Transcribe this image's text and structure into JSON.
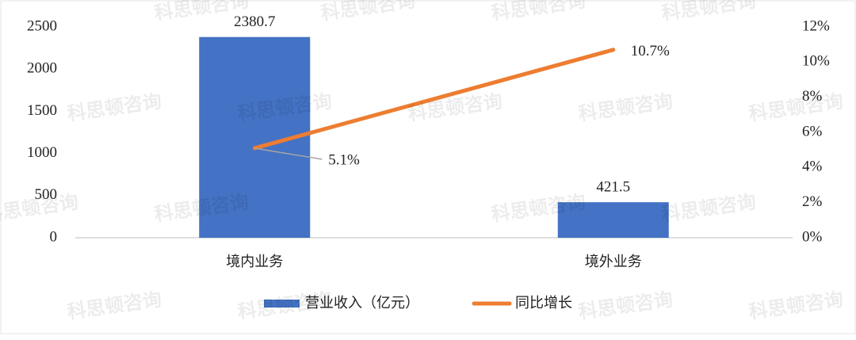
{
  "chart_data": {
    "type": "combo",
    "watermark": "科思顿咨询",
    "categories": [
      "境内业务",
      "境外业务"
    ],
    "series": [
      {
        "name": "营业收入（亿元）",
        "type": "bar",
        "color": "#4472c4",
        "values": [
          2380.7,
          421.5
        ]
      },
      {
        "name": "同比增长",
        "type": "line",
        "color": "#ed7d31",
        "axis": "y2",
        "values": [
          5.1,
          10.7
        ],
        "value_labels": [
          "5.1%",
          "10.7%"
        ]
      }
    ],
    "ylim": [
      0,
      2500
    ],
    "yticks": [
      0,
      500,
      1000,
      1500,
      2000,
      2500
    ],
    "y2lim": [
      0,
      12
    ],
    "y2ticks": [
      {
        "value": 0,
        "label": "0%"
      },
      {
        "value": 2,
        "label": "2%"
      },
      {
        "value": 4,
        "label": "4%"
      },
      {
        "value": 6,
        "label": "6%"
      },
      {
        "value": 8,
        "label": "8%"
      },
      {
        "value": 10,
        "label": "10%"
      },
      {
        "value": 12,
        "label": "12%"
      }
    ],
    "grid": false,
    "legend": "bottom"
  }
}
